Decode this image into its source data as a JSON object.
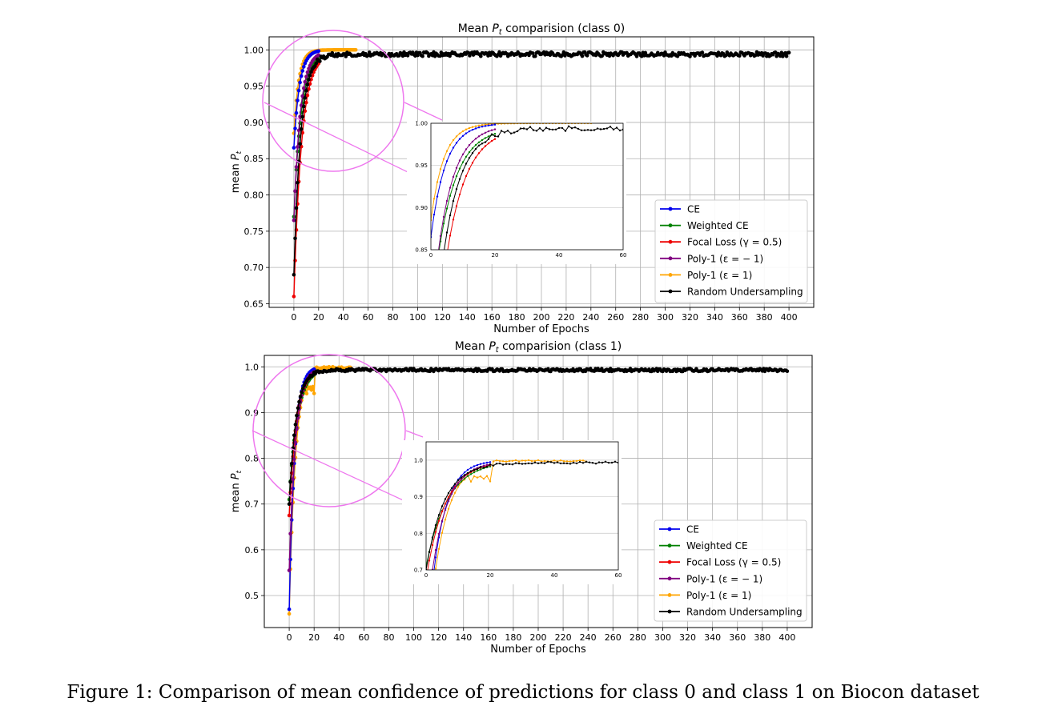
{
  "caption": "Figure 1: Comparison of mean confidence of predictions for class 0 and class 1 on Biocon dataset",
  "legend_entries": [
    "CE",
    "Weighted CE",
    "Focal Loss (γ = 0.5)",
    "Poly-1 (ε = − 1)",
    "Poly-1 (ε = 1)",
    "Random Undersampling"
  ],
  "series_colors": [
    "#0000ee",
    "#008000",
    "#ee0000",
    "#800080",
    "#ffa500",
    "#000000"
  ],
  "highlight_color": "#ee77ee",
  "chart_data": [
    {
      "type": "line",
      "title_prefix": "Mean ",
      "title_var": "P",
      "title_sub": "t",
      "title_suffix": " comparision (class 0)",
      "xlabel": "Number of Epochs",
      "ylabel_prefix": "mean ",
      "ylabel_var": "P",
      "ylabel_sub": "t",
      "xlim": [
        -20,
        420
      ],
      "ylim": [
        0.645,
        1.018
      ],
      "xticks": [
        0,
        20,
        40,
        60,
        80,
        100,
        120,
        140,
        160,
        180,
        200,
        220,
        240,
        260,
        280,
        300,
        320,
        340,
        360,
        380,
        400
      ],
      "yticks": [
        0.65,
        0.7,
        0.75,
        0.8,
        0.85,
        0.9,
        0.95,
        1.0
      ],
      "ytick_labels": [
        "0.65",
        "0.70",
        "0.75",
        "0.80",
        "0.85",
        "0.90",
        "0.95",
        "1.00"
      ],
      "grid": true,
      "legend_position": "lower right",
      "series": [
        {
          "name": "CE",
          "max_epoch": 20,
          "start": 0.865,
          "end": 1.0,
          "rise": 0.22
        },
        {
          "name": "Weighted CE",
          "max_epoch": 20,
          "start": 0.77,
          "end": 0.995,
          "rise": 0.17
        },
        {
          "name": "Focal Loss (γ = 0.5)",
          "max_epoch": 20,
          "start": 0.66,
          "end": 0.995,
          "rise": 0.16
        },
        {
          "name": "Poly-1 (ε = − 1)",
          "max_epoch": 20,
          "start": 0.765,
          "end": 0.998,
          "rise": 0.19
        },
        {
          "name": "Poly-1 (ε = 1)",
          "max_epoch": 50,
          "start": 0.885,
          "end": 1.0,
          "rise": 0.25
        },
        {
          "name": "Random Undersampling",
          "max_epoch": 400,
          "start": 0.69,
          "end": 0.994,
          "rise": 0.18
        }
      ],
      "inset": {
        "xlim": [
          0,
          60
        ],
        "ylim": [
          0.85,
          1.0
        ],
        "xticks": [
          0,
          20,
          40,
          60
        ],
        "yticks": [
          0.85,
          0.9,
          0.95,
          1.0
        ],
        "ytick_labels": [
          "0.85",
          "0.90",
          "0.95",
          "1.00"
        ]
      }
    },
    {
      "type": "line",
      "title_prefix": "Mean ",
      "title_var": "P",
      "title_sub": "t",
      "title_suffix": " comparision (class 1)",
      "xlabel": "Number of Epochs",
      "ylabel_prefix": "mean ",
      "ylabel_var": "P",
      "ylabel_sub": "t",
      "xlim": [
        -20,
        420
      ],
      "ylim": [
        0.43,
        1.025
      ],
      "xticks": [
        0,
        20,
        40,
        60,
        80,
        100,
        120,
        140,
        160,
        180,
        200,
        220,
        240,
        260,
        280,
        300,
        320,
        340,
        360,
        380,
        400
      ],
      "yticks": [
        0.5,
        0.6,
        0.7,
        0.8,
        0.9,
        1.0
      ],
      "ytick_labels": [
        "0.5",
        "0.6",
        "0.7",
        "0.8",
        "0.9",
        "1.0"
      ],
      "grid": true,
      "legend_position": "lower right",
      "series": [
        {
          "name": "CE",
          "max_epoch": 20,
          "start": 0.47,
          "end": 1.0,
          "rise": 0.23
        },
        {
          "name": "Weighted CE",
          "max_epoch": 20,
          "start": 0.71,
          "end": 0.997,
          "rise": 0.15
        },
        {
          "name": "Focal Loss (γ = 0.5)",
          "max_epoch": 20,
          "start": 0.675,
          "end": 0.997,
          "rise": 0.17
        },
        {
          "name": "Poly-1 (ε = − 1)",
          "max_epoch": 20,
          "start": 0.555,
          "end": 0.997,
          "rise": 0.2
        },
        {
          "name": "Poly-1 (ε = 1)",
          "max_epoch": 50,
          "start": 0.46,
          "end": 1.0,
          "rise": 0.2,
          "plateau": 0.95,
          "plateau_until": 20
        },
        {
          "name": "Random Undersampling",
          "max_epoch": 400,
          "start": 0.7,
          "end": 0.993,
          "rise": 0.18
        }
      ],
      "inset": {
        "xlim": [
          0,
          60
        ],
        "ylim": [
          0.7,
          1.05
        ],
        "xticks": [
          0,
          20,
          40,
          60
        ],
        "yticks": [
          0.7,
          0.8,
          0.9,
          1.0
        ],
        "ytick_labels": [
          "0.7",
          "0.8",
          "0.9",
          "1.0"
        ]
      }
    }
  ]
}
